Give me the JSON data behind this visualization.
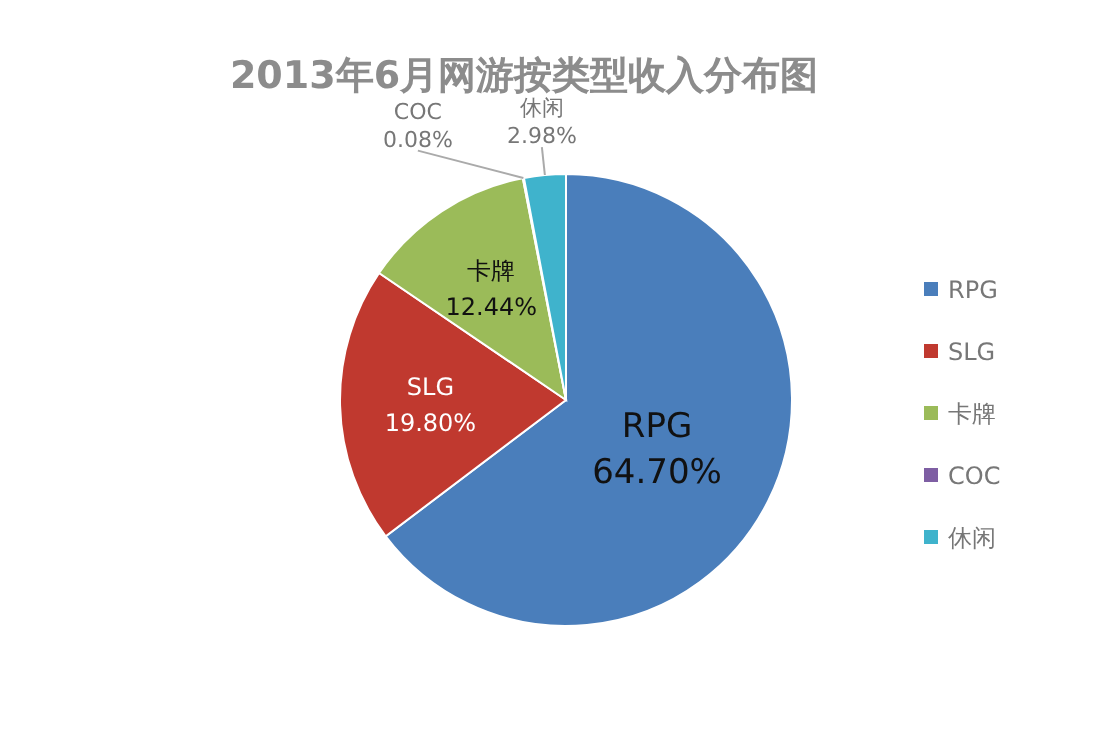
{
  "chart_data": {
    "type": "pie",
    "title": "2013年6月网游按类型收入分布图",
    "categories": [
      "RPG",
      "SLG",
      "卡牌",
      "COC",
      "休闲"
    ],
    "values": [
      64.7,
      19.8,
      12.44,
      0.08,
      2.98
    ],
    "value_labels": [
      "64.70%",
      "19.80%",
      "12.44%",
      "0.08%",
      "2.98%"
    ],
    "colors": [
      "#4a7ebb",
      "#c0392f",
      "#9bbb59",
      "#7e5ea3",
      "#3fb3cc"
    ],
    "legend": "right"
  }
}
